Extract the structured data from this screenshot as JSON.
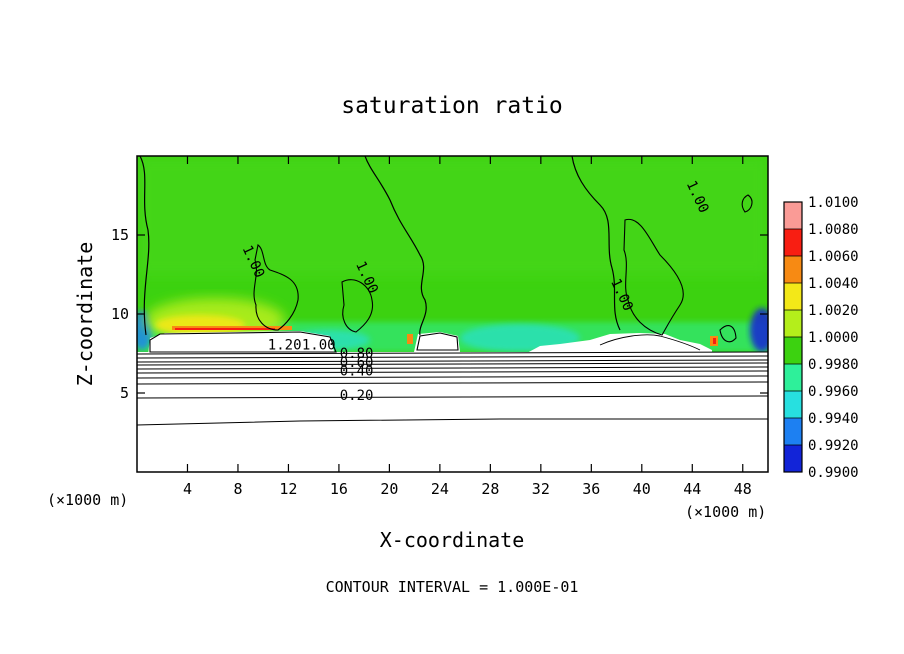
{
  "chart_data": {
    "type": "heatmap",
    "title": "saturation ratio",
    "xlabel": "X-coordinate",
    "ylabel": "Z-coordinate",
    "x_unit_left": "(×1000 m)",
    "x_unit_right": "(×1000 m)",
    "xlim": [
      0,
      50
    ],
    "ylim": [
      0,
      20
    ],
    "x_ticks": [
      4,
      8,
      12,
      16,
      20,
      24,
      28,
      32,
      36,
      40,
      44,
      48
    ],
    "y_ticks": [
      5,
      10,
      15
    ],
    "colorbar": {
      "levels": [
        "1.0100",
        "1.0080",
        "1.0060",
        "1.0040",
        "1.0020",
        "1.0000",
        "0.9980",
        "0.9960",
        "0.9940",
        "0.9920",
        "0.9900"
      ],
      "colors": [
        "#fa9b96",
        "#f81e12",
        "#f78a13",
        "#f3e818",
        "#b4ee1b",
        "#3cd210",
        "#2ef09a",
        "#27e0e0",
        "#1d80f2",
        "#1224d8",
        "#6a12b4"
      ]
    },
    "contour_labels": [
      {
        "text": "1.00",
        "x": 8.9,
        "y": 13.2
      },
      {
        "text": "1.00",
        "x": 17.9,
        "y": 12.2
      },
      {
        "text": "1.00",
        "x": 44.1,
        "y": 17.3
      },
      {
        "text": "1.00",
        "x": 38.1,
        "y": 11.1
      },
      {
        "text": "1.20",
        "x": 11.7,
        "y": 7.75
      },
      {
        "text": "1.00",
        "x": 14.4,
        "y": 7.75
      },
      {
        "text": "0.80",
        "x": 17.4,
        "y": 7.2
      },
      {
        "text": "0.60",
        "x": 17.4,
        "y": 6.65
      },
      {
        "text": "0.40",
        "x": 17.4,
        "y": 6.1
      },
      {
        "text": "0.20",
        "x": 17.4,
        "y": 4.55
      }
    ],
    "annotation": "CONTOUR INTERVAL = 1.000E-01"
  }
}
